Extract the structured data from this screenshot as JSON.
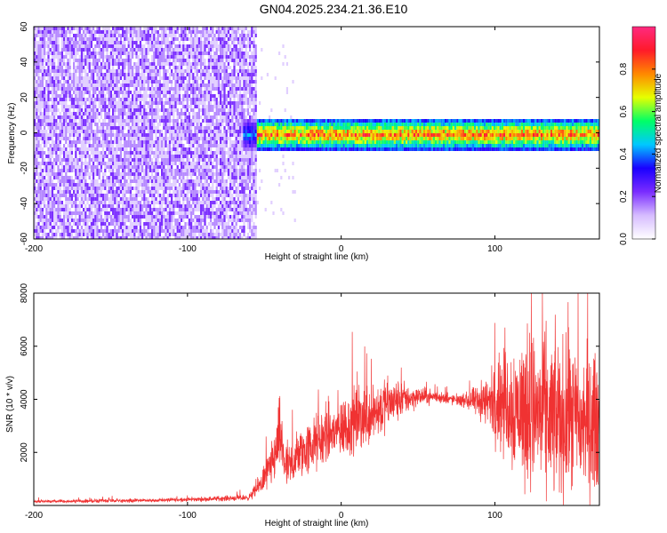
{
  "title": "GN04.2025.234.21.36.E10",
  "colors": {
    "snr_line": "#f03232",
    "background": "#ffffff",
    "frame": "#000000",
    "colormap": [
      "#ffffff",
      "#d6bcff",
      "#7a2cff",
      "#1a00ff",
      "#00c8ff",
      "#00ff66",
      "#e6ff00",
      "#ff8800",
      "#ff1a2a",
      "#ff2a80"
    ]
  },
  "chart_data": [
    {
      "type": "heatmap",
      "name": "spectrogram",
      "xlabel": "Height of straight line (km)",
      "ylabel": "Frequency (Hz)",
      "xlim": [
        -200,
        168
      ],
      "ylim": [
        -60,
        60
      ],
      "x_ticks": [
        -200,
        -100,
        0,
        100
      ],
      "y_ticks": [
        -60,
        -40,
        -20,
        0,
        20,
        40,
        60
      ],
      "grid": false,
      "colorbar": {
        "label": "Normalized spectral amplitude",
        "range": [
          0.0,
          1.0
        ],
        "ticks": [
          0.0,
          0.2,
          0.4,
          0.6,
          0.8
        ]
      },
      "regions": [
        {
          "x_range": [
            -200,
            -55
          ],
          "freq_range": [
            -60,
            60
          ],
          "amplitude": "low, broadband noise (0.05-0.25)"
        },
        {
          "x_range": [
            -65,
            168
          ],
          "freq_range": [
            -8,
            8
          ],
          "amplitude": "narrow band centered near 0 Hz, peaks 0.8-1.0"
        }
      ]
    },
    {
      "type": "line",
      "name": "snr",
      "xlabel": "Height of straight line (km)",
      "ylabel": "SNR (10 * v/v)",
      "xlim": [
        -200,
        168
      ],
      "ylim": [
        0,
        8000
      ],
      "x_ticks": [
        -200,
        -100,
        0,
        100
      ],
      "y_ticks": [
        2000,
        4000,
        6000,
        8000
      ],
      "grid": false,
      "envelope": {
        "x": [
          -200,
          -150,
          -100,
          -60,
          -55,
          -45,
          -40,
          -35,
          -30,
          -20,
          -10,
          0,
          10,
          20,
          30,
          40,
          50,
          60,
          70,
          80,
          90,
          100,
          110,
          120,
          130,
          140,
          150,
          160,
          168
        ],
        "mean": [
          150,
          170,
          220,
          300,
          600,
          1500,
          2600,
          1200,
          1800,
          2200,
          2600,
          2900,
          3200,
          3500,
          3800,
          4000,
          4100,
          4100,
          4000,
          3950,
          3900,
          3900,
          3800,
          3600,
          3400,
          3300,
          3200,
          3100,
          3100
        ],
        "spread": [
          60,
          70,
          80,
          120,
          300,
          900,
          1500,
          900,
          1000,
          1100,
          1200,
          1300,
          1300,
          1300,
          1100,
          700,
          400,
          250,
          200,
          250,
          700,
          1500,
          2500,
          3000,
          3200,
          3200,
          3000,
          2900,
          2800
        ]
      }
    }
  ]
}
